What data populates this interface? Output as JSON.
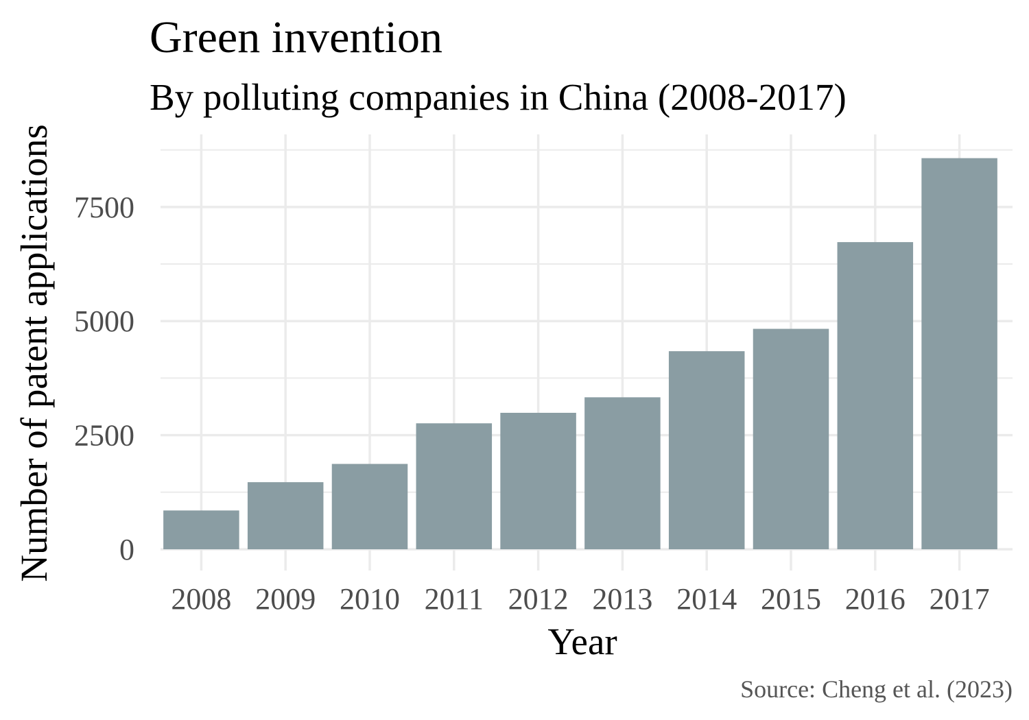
{
  "chart_data": {
    "type": "bar",
    "title": "Green invention",
    "subtitle": "By polluting companies in China (2008-2017)",
    "xlabel": "Year",
    "ylabel": "Number of patent applications",
    "caption": "Source: Cheng et al. (2023)",
    "categories": [
      "2008",
      "2009",
      "2010",
      "2011",
      "2012",
      "2013",
      "2014",
      "2015",
      "2016",
      "2017"
    ],
    "values": [
      850,
      1470,
      1870,
      2760,
      2990,
      3330,
      4340,
      4830,
      6730,
      8570
    ],
    "y_ticks": [
      0,
      2500,
      5000,
      7500
    ],
    "y_tick_labels": [
      "0",
      "2500",
      "5000",
      "7500"
    ],
    "ylim": [
      0,
      8850
    ],
    "grid": true,
    "legend": "none",
    "colors": {
      "bar": "#8a9da3",
      "grid": "#ebebeb",
      "tick_text": "#4d4d4d",
      "title_text": "#000000",
      "caption_text": "#555555"
    }
  }
}
